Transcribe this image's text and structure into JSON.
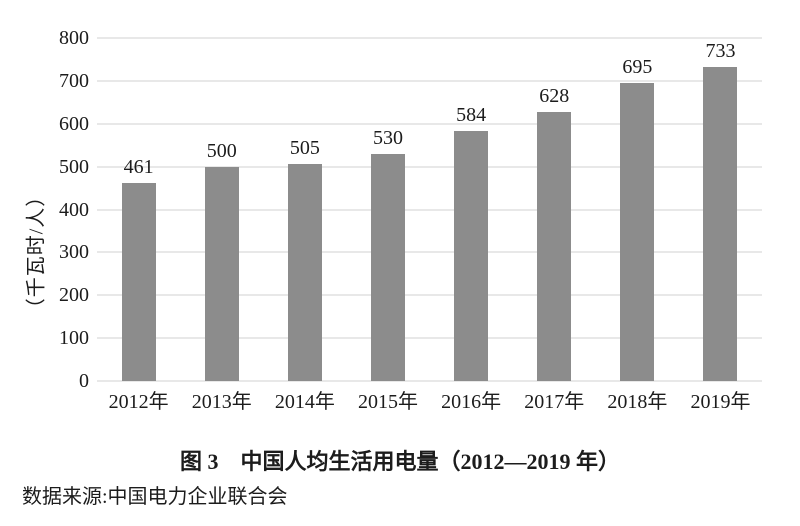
{
  "chart_data": {
    "type": "bar",
    "title": "图 3　中国人均生活用电量（2012—2019 年）",
    "source_note": "数据来源:中国电力企业联合会",
    "xlabel": "",
    "ylabel": "（千瓦时/人）",
    "categories": [
      "2012年",
      "2013年",
      "2014年",
      "2015年",
      "2016年",
      "2017年",
      "2018年",
      "2019年"
    ],
    "values": [
      461,
      500,
      505,
      530,
      584,
      628,
      695,
      733
    ],
    "ylim": [
      0,
      800
    ],
    "yticks": [
      0,
      100,
      200,
      300,
      400,
      500,
      600,
      700,
      800
    ],
    "grid": true,
    "data_labels": true,
    "legend": false,
    "colors": {
      "bar": "#8c8c8c",
      "gridline": "#e8e8e8",
      "text": "#1c1c1c",
      "background": "#ffffff"
    }
  }
}
